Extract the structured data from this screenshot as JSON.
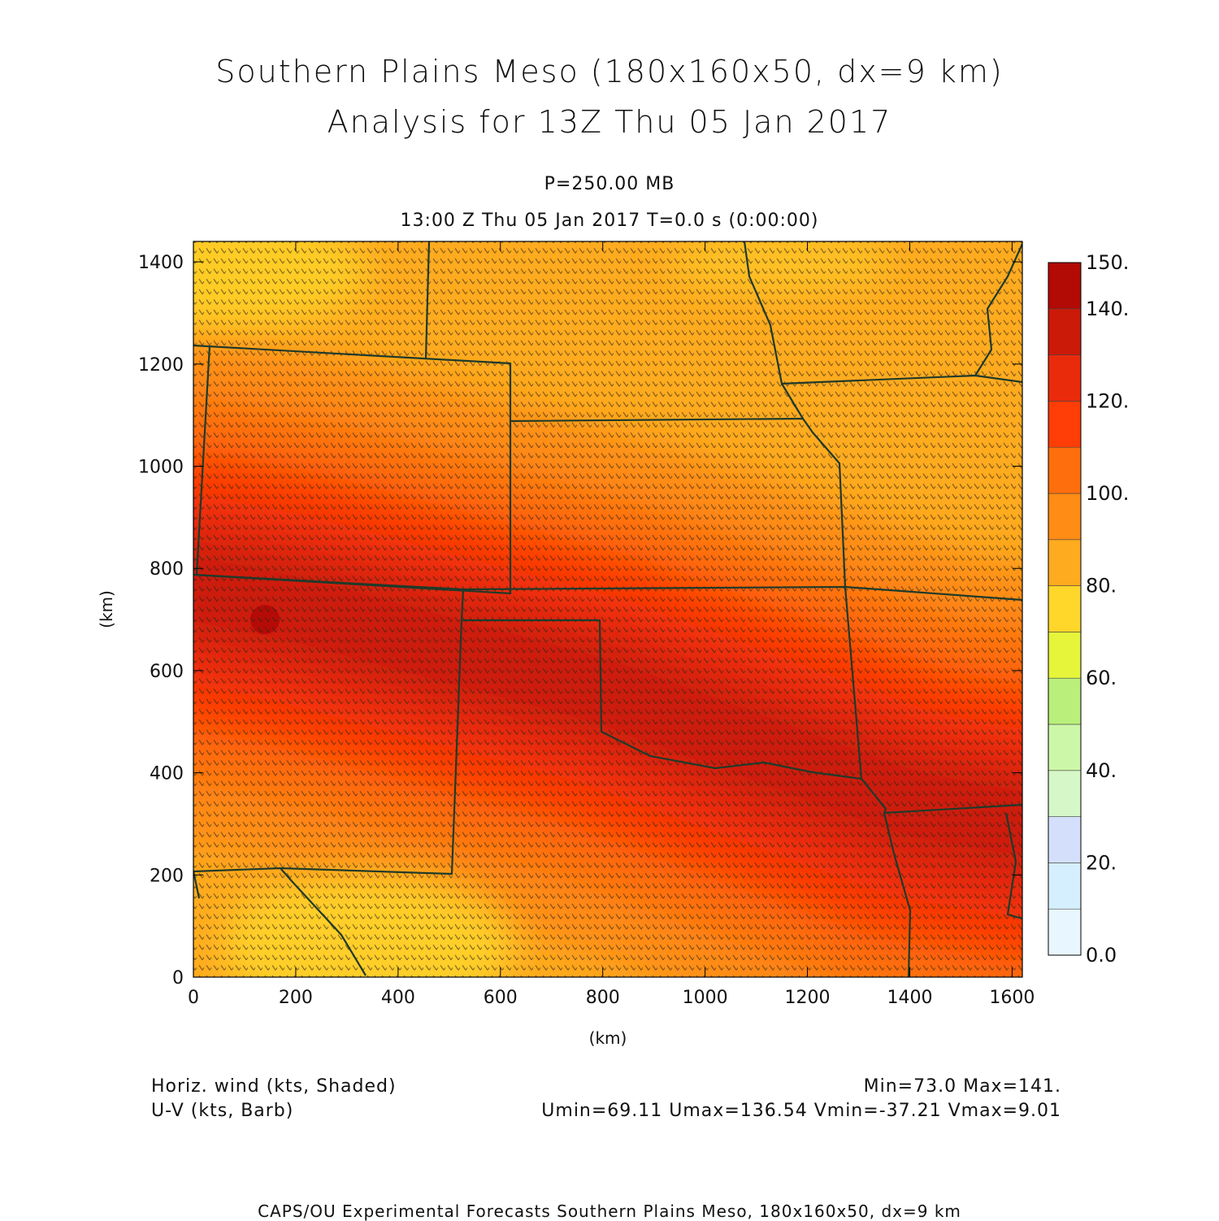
{
  "header": {
    "title_line1": "Southern Plains Meso (180x160x50, dx=9 km)",
    "title_line2": "Analysis for 13Z Thu 05 Jan 2017",
    "level": "P=250.00 MB",
    "time": "13:00 Z Thu 05 Jan 2017   T=0.0 s (0:00:00)"
  },
  "chart_data": {
    "type": "heatmap",
    "xlabel": "(km)",
    "ylabel": "(km)",
    "xlim": [
      0,
      1620
    ],
    "ylim": [
      0,
      1440
    ],
    "xticks": [
      0,
      200,
      400,
      600,
      800,
      1000,
      1200,
      1400,
      1600
    ],
    "yticks": [
      0,
      200,
      400,
      600,
      800,
      1000,
      1200,
      1400
    ],
    "field": "Horizontal wind speed (kts), shaded, with U-V wind barbs",
    "jet_axis": [
      [
        0,
        760
      ],
      [
        200,
        720
      ],
      [
        500,
        640
      ],
      [
        800,
        560
      ],
      [
        1100,
        450
      ],
      [
        1400,
        340
      ],
      [
        1620,
        300
      ]
    ],
    "jet_max_location": [
      140,
      700
    ],
    "stats": {
      "min": 73.0,
      "max": 141.0,
      "umin": 69.11,
      "umax": 136.54,
      "vmin": -37.21,
      "vmax": 9.01
    },
    "colorbar": {
      "labels": [
        "150.",
        "140.",
        "120.",
        "100.",
        "80.",
        "60.",
        "40.",
        "20.",
        "0.0"
      ],
      "levels": [
        0,
        10,
        20,
        30,
        40,
        50,
        60,
        70,
        80,
        90,
        100,
        110,
        120,
        130,
        140,
        150
      ],
      "colors": [
        "#e8f7ff",
        "#d6efff",
        "#d4e0fb",
        "#d6f7c8",
        "#cdf7a8",
        "#b9ef7a",
        "#e6f53a",
        "#ffd72a",
        "#ffab1f",
        "#ff8c14",
        "#ff6e0d",
        "#ff3d06",
        "#e92b0c",
        "#cc1a08",
        "#b20a05"
      ]
    }
  },
  "footer": {
    "left_line1": "Horiz. wind (kts, Shaded)",
    "left_line2": "U-V (kts, Barb)",
    "right_line1": "Min=73.0 Max=141.",
    "right_line2": "Umin=69.11 Umax=136.54 Vmin=-37.21 Vmax=9.01",
    "credit": "CAPS/OU Experimental Forecasts  Southern Plains Meso, 180x160x50, dx=9 km"
  }
}
